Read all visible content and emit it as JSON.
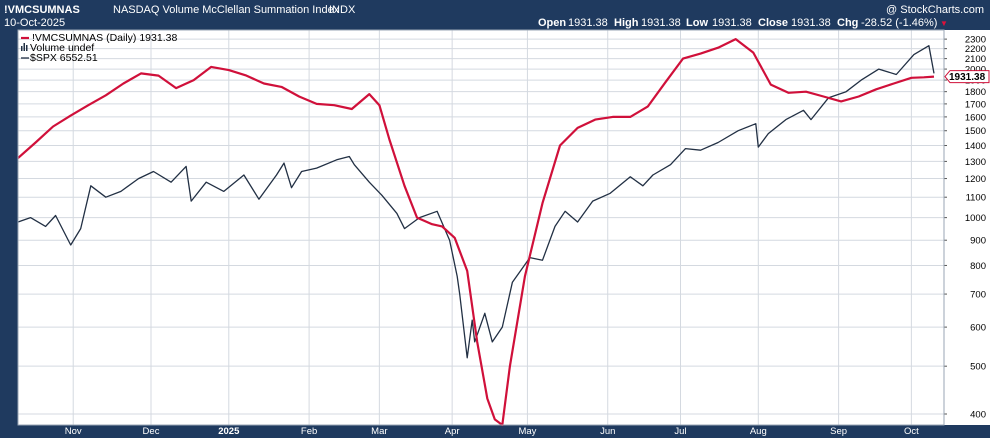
{
  "header": {
    "symbol": "!VMCSUMNAS",
    "description": "NASDAQ Volume McClellan Summation Index",
    "exchange": "INDX",
    "date": "10-Oct-2025",
    "watermark": "@ StockCharts.com",
    "ohlc": {
      "open_label": "Open",
      "open": "1931.38",
      "high_label": "High",
      "high": "1931.38",
      "low_label": "Low",
      "low": "1931.38",
      "close_label": "Close",
      "close": "1931.38",
      "chg_label": "Chg",
      "chg": "-28.52 (-1.46%)"
    },
    "chg_arrow": "▼"
  },
  "legend": {
    "main": "!VMCSUMNAS (Daily) 1931.38",
    "volume": "Volume undef",
    "spx": "$SPX 6552.51"
  },
  "price_tag": "1931.38",
  "colors": {
    "header_bg": "#1f3a5f",
    "frame": "#1f3a5f",
    "main_line": "#d0103a",
    "spx_line": "#223044",
    "chg_down": "#e0103a"
  },
  "chart_data": {
    "type": "line",
    "y_scale": "log",
    "ylim": [
      380,
      2400
    ],
    "y_ticks": [
      400,
      500,
      600,
      700,
      800,
      900,
      1000,
      1100,
      1200,
      1300,
      1400,
      1500,
      1600,
      1700,
      1800,
      1900,
      2000,
      2100,
      2200,
      2300
    ],
    "x_ticks": [
      "Nov",
      "Dec",
      "2025",
      "Feb",
      "Mar",
      "Apr",
      "May",
      "Jun",
      "Jul",
      "Aug",
      "Sep",
      "Oct"
    ],
    "x_tick_dates": [
      "2024-11-01",
      "2024-12-02",
      "2025-01-02",
      "2025-02-03",
      "2025-03-03",
      "2025-04-01",
      "2025-05-01",
      "2025-06-02",
      "2025-07-01",
      "2025-08-01",
      "2025-09-02",
      "2025-10-01"
    ],
    "x_range": [
      "2024-10-10",
      "2025-10-14"
    ],
    "grid": true,
    "legend_position": "top-left",
    "series": [
      {
        "name": "!VMCSUMNAS (Daily) 1931.38",
        "x": [
          "2024-10-10",
          "2024-10-17",
          "2024-10-24",
          "2024-10-31",
          "2024-11-07",
          "2024-11-14",
          "2024-11-21",
          "2024-11-28",
          "2024-12-05",
          "2024-12-12",
          "2024-12-19",
          "2024-12-26",
          "2025-01-02",
          "2025-01-09",
          "2025-01-16",
          "2025-01-23",
          "2025-01-30",
          "2025-02-06",
          "2025-02-13",
          "2025-02-20",
          "2025-02-27",
          "2025-03-03",
          "2025-03-07",
          "2025-03-13",
          "2025-03-18",
          "2025-03-24",
          "2025-03-28",
          "2025-04-02",
          "2025-04-07",
          "2025-04-11",
          "2025-04-15",
          "2025-04-18",
          "2025-04-21",
          "2025-04-24",
          "2025-04-30",
          "2025-05-07",
          "2025-05-14",
          "2025-05-21",
          "2025-05-28",
          "2025-06-04",
          "2025-06-11",
          "2025-06-18",
          "2025-06-25",
          "2025-07-02",
          "2025-07-09",
          "2025-07-16",
          "2025-07-23",
          "2025-07-30",
          "2025-08-06",
          "2025-08-13",
          "2025-08-20",
          "2025-08-27",
          "2025-09-03",
          "2025-09-10",
          "2025-09-17",
          "2025-09-24",
          "2025-10-01",
          "2025-10-06",
          "2025-10-10"
        ],
        "y": [
          1320,
          1420,
          1530,
          1610,
          1690,
          1770,
          1870,
          1960,
          1940,
          1830,
          1900,
          2020,
          1990,
          1940,
          1870,
          1840,
          1760,
          1700,
          1690,
          1660,
          1780,
          1690,
          1440,
          1160,
          1000,
          970,
          960,
          910,
          780,
          560,
          430,
          390,
          380,
          500,
          760,
          1070,
          1400,
          1520,
          1580,
          1600,
          1600,
          1680,
          1880,
          2100,
          2150,
          2210,
          2300,
          2160,
          1860,
          1790,
          1800,
          1760,
          1720,
          1760,
          1820,
          1870,
          1920,
          1925,
          1931
        ]
      },
      {
        "name": "$SPX 6552.51",
        "x": [
          "2024-10-10",
          "2024-10-15",
          "2024-10-21",
          "2024-10-25",
          "2024-10-31",
          "2024-11-04",
          "2024-11-08",
          "2024-11-14",
          "2024-11-20",
          "2024-11-27",
          "2024-12-03",
          "2024-12-10",
          "2024-12-16",
          "2024-12-18",
          "2024-12-24",
          "2024-12-31",
          "2025-01-08",
          "2025-01-14",
          "2025-01-21",
          "2025-01-24",
          "2025-01-27",
          "2025-01-31",
          "2025-02-06",
          "2025-02-14",
          "2025-02-19",
          "2025-02-21",
          "2025-02-27",
          "2025-03-04",
          "2025-03-10",
          "2025-03-13",
          "2025-03-19",
          "2025-03-26",
          "2025-03-31",
          "2025-04-03",
          "2025-04-04",
          "2025-04-07",
          "2025-04-09",
          "2025-04-10",
          "2025-04-14",
          "2025-04-17",
          "2025-04-21",
          "2025-04-25",
          "2025-05-02",
          "2025-05-07",
          "2025-05-12",
          "2025-05-16",
          "2025-05-21",
          "2025-05-27",
          "2025-06-03",
          "2025-06-11",
          "2025-06-16",
          "2025-06-20",
          "2025-06-27",
          "2025-07-03",
          "2025-07-09",
          "2025-07-16",
          "2025-07-24",
          "2025-07-31",
          "2025-08-01",
          "2025-08-05",
          "2025-08-12",
          "2025-08-19",
          "2025-08-22",
          "2025-08-29",
          "2025-09-05",
          "2025-09-11",
          "2025-09-18",
          "2025-09-25",
          "2025-10-02",
          "2025-10-08",
          "2025-10-10"
        ],
        "y": [
          980,
          1000,
          960,
          1010,
          880,
          950,
          1160,
          1100,
          1130,
          1200,
          1240,
          1180,
          1270,
          1080,
          1180,
          1130,
          1220,
          1090,
          1220,
          1290,
          1150,
          1240,
          1260,
          1310,
          1330,
          1280,
          1180,
          1110,
          1020,
          950,
          1000,
          1030,
          900,
          760,
          700,
          520,
          620,
          560,
          640,
          560,
          600,
          740,
          830,
          820,
          960,
          1030,
          980,
          1080,
          1120,
          1210,
          1160,
          1220,
          1280,
          1380,
          1370,
          1420,
          1500,
          1550,
          1390,
          1480,
          1580,
          1650,
          1580,
          1750,
          1800,
          1900,
          2000,
          1950,
          2140,
          2230,
          1960
        ]
      }
    ]
  }
}
